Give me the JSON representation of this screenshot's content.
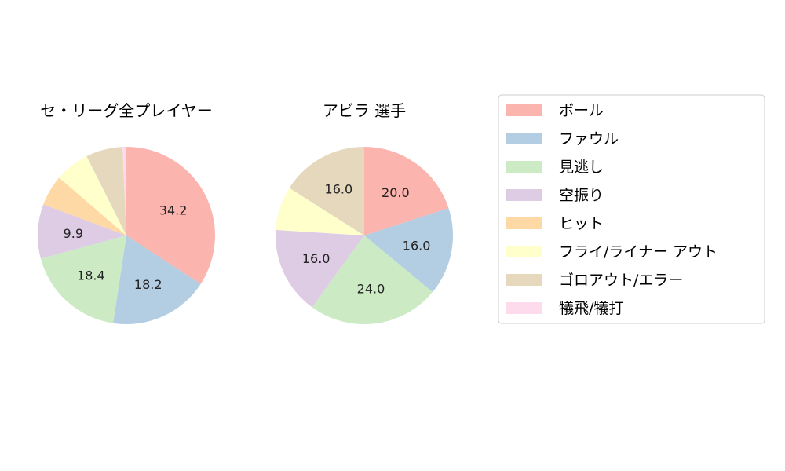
{
  "legend": {
    "entries": [
      {
        "label": "ボール",
        "color": "#fbb4ae"
      },
      {
        "label": "ファウル",
        "color": "#b3cde3"
      },
      {
        "label": "見逃し",
        "color": "#ccebc5"
      },
      {
        "label": "空振り",
        "color": "#decbe4"
      },
      {
        "label": "ヒット",
        "color": "#fed9a6"
      },
      {
        "label": "フライ/ライナー アウト",
        "color": "#ffffcc"
      },
      {
        "label": "ゴロアウト/エラー",
        "color": "#e5d8bd"
      },
      {
        "label": "犠飛/犠打",
        "color": "#fddaec"
      }
    ]
  },
  "chart_data": [
    {
      "type": "pie",
      "title": "セ・リーグ全プレイヤー",
      "categories": [
        "ボール",
        "ファウル",
        "見逃し",
        "空振り",
        "ヒット",
        "フライ/ライナー アウト",
        "ゴロアウト/エラー",
        "犠飛/犠打"
      ],
      "values": [
        34.2,
        18.2,
        18.4,
        9.9,
        5.6,
        6.3,
        6.7,
        0.7
      ],
      "labels": [
        "34.2",
        "18.2",
        "18.4",
        "9.9",
        "",
        "",
        "",
        ""
      ]
    },
    {
      "type": "pie",
      "title": "アビラ 選手",
      "categories": [
        "ボール",
        "ファウル",
        "見逃し",
        "空振り",
        "ヒット",
        "フライ/ライナー アウト",
        "ゴロアウト/エラー",
        "犠飛/犠打"
      ],
      "values": [
        20.0,
        16.0,
        24.0,
        16.0,
        0,
        8.0,
        16.0,
        0
      ],
      "labels": [
        "20.0",
        "16.0",
        "24.0",
        "16.0",
        "",
        "",
        "16.0",
        ""
      ]
    }
  ]
}
